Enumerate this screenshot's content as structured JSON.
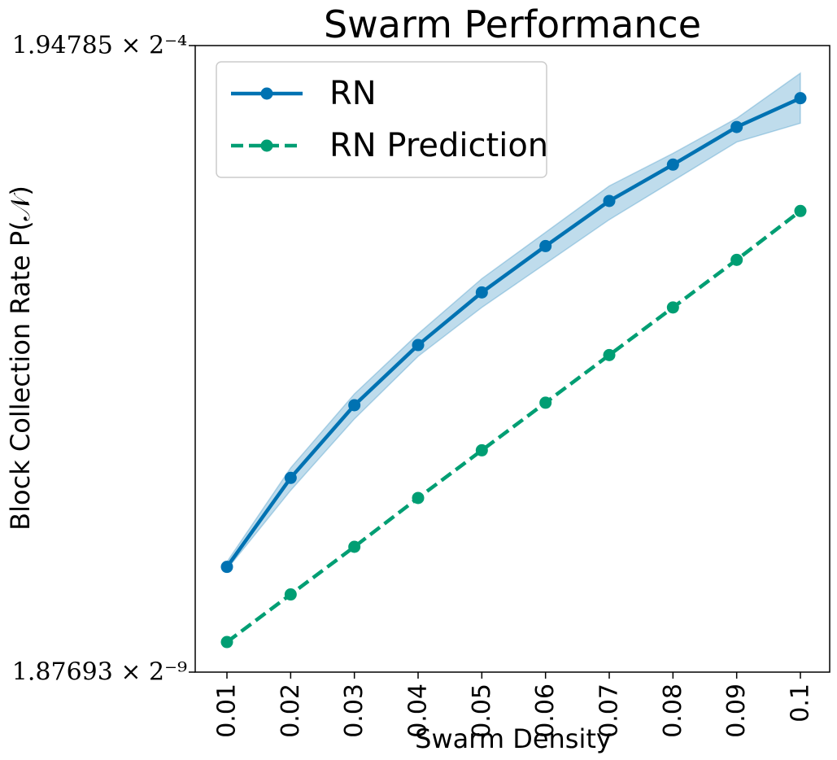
{
  "chart_data": {
    "type": "line",
    "title": "Swarm Performance",
    "xlabel": "Swarm Density",
    "ylabel": "Block Collection Rate P(𝒩)",
    "x": [
      0.01,
      0.02,
      0.03,
      0.04,
      0.05,
      0.06,
      0.07,
      0.08,
      0.09,
      0.1
    ],
    "x_tick_labels": [
      "0.01",
      "0.02",
      "0.03",
      "0.04",
      "0.05",
      "0.06",
      "0.07",
      "0.08",
      "0.09",
      "0.1"
    ],
    "y_scale": "log2",
    "ylim_log2": [
      -9.0,
      -4.0
    ],
    "y_tick_labels": [
      "1.87693 × 2⁻⁹",
      "1.94785 × 2⁻⁴"
    ],
    "series": [
      {
        "name": "RN",
        "color": "#0072b2",
        "linestyle": "solid",
        "marker": "circle",
        "log2_values": [
          -8.16,
          -7.45,
          -6.87,
          -6.39,
          -5.97,
          -5.6,
          -5.24,
          -4.95,
          -4.65,
          -4.42
        ],
        "band_lower_log2": [
          -8.18,
          -7.55,
          -6.98,
          -6.48,
          -6.09,
          -5.74,
          -5.39,
          -5.08,
          -4.77,
          -4.62
        ],
        "band_upper_log2": [
          -8.12,
          -7.37,
          -6.78,
          -6.3,
          -5.86,
          -5.49,
          -5.12,
          -4.86,
          -4.58,
          -4.22
        ]
      },
      {
        "name": "RN Prediction",
        "color": "#009e73",
        "linestyle": "dashed",
        "marker": "circle",
        "log2_values": [
          -8.76,
          -8.38,
          -8.0,
          -7.61,
          -7.23,
          -6.85,
          -6.47,
          -6.09,
          -5.71,
          -5.32
        ]
      }
    ],
    "legend": {
      "placement": "top-left"
    },
    "grid": false
  }
}
